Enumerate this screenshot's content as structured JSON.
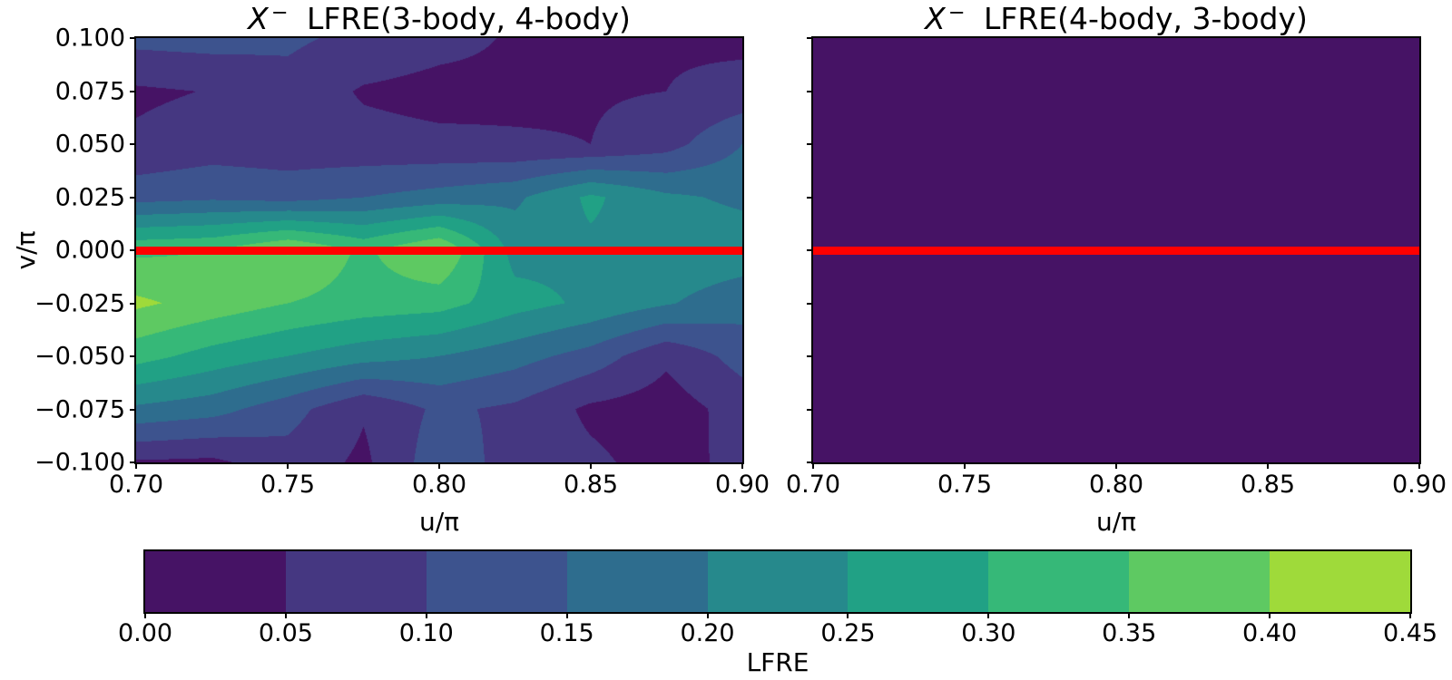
{
  "figure": {
    "background": "#ffffff",
    "titles": [
      {
        "var": "X",
        "sup": "−",
        "rest": " LFRE(3-body, 4-body)"
      },
      {
        "var": "X",
        "sup": "−",
        "rest": " LFRE(4-body, 3-body)"
      }
    ]
  },
  "colorbar": {
    "label": "LFRE",
    "tick_labels": [
      "0.00",
      "0.05",
      "0.10",
      "0.15",
      "0.20",
      "0.25",
      "0.30",
      "0.35",
      "0.40",
      "0.45"
    ],
    "levels": [
      0,
      0.05,
      0.1,
      0.15,
      0.2,
      0.25,
      0.3,
      0.35,
      0.4,
      0.45
    ],
    "colors": [
      "#461365",
      "#453781",
      "#3d538e",
      "#2e6d8e",
      "#26898c",
      "#21a185",
      "#36b878",
      "#5ec962",
      "#9fda3a"
    ]
  },
  "chart_data": [
    {
      "type": "heatmap",
      "title": "X⁻ LFRE(3-body, 4-body)",
      "xlabel": "u/π",
      "ylabel": "v/π",
      "xlim": [
        0.7,
        0.9
      ],
      "ylim": [
        -0.1,
        0.1
      ],
      "x": [
        0.7,
        0.725,
        0.75,
        0.775,
        0.8,
        0.825,
        0.85,
        0.875,
        0.9
      ],
      "y": [
        0.1,
        0.075,
        0.05,
        0.025,
        0.0,
        -0.025,
        -0.05,
        -0.075,
        -0.1
      ],
      "xtick_values": [
        0.7,
        0.75,
        0.8,
        0.85,
        0.9
      ],
      "xtick_labels": [
        "0.70",
        "0.75",
        "0.80",
        "0.85",
        "0.90"
      ],
      "ytick_values": [
        0.1,
        0.075,
        0.05,
        0.025,
        0.0,
        -0.025,
        -0.05,
        -0.075,
        -0.1
      ],
      "ytick_labels": [
        "0.100",
        "0.075",
        "0.050",
        "0.025",
        "0.000",
        "−0.025",
        "−0.050",
        "−0.075",
        "−0.100"
      ],
      "z": [
        [
          0.115,
          0.12,
          0.11,
          0.085,
          0.065,
          0.045,
          0.04,
          0.045,
          0.04
        ],
        [
          0.042,
          0.052,
          0.08,
          0.045,
          0.035,
          0.04,
          0.045,
          0.05,
          0.065
        ],
        [
          0.058,
          0.075,
          0.07,
          0.065,
          0.06,
          0.055,
          0.05,
          0.08,
          0.15
        ],
        [
          0.13,
          0.14,
          0.13,
          0.15,
          0.17,
          0.19,
          0.26,
          0.21,
          0.19
        ],
        [
          0.34,
          0.35,
          0.405,
          0.34,
          0.405,
          0.23,
          0.24,
          0.235,
          0.23
        ],
        [
          0.41,
          0.38,
          0.35,
          0.33,
          0.32,
          0.27,
          0.24,
          0.205,
          0.17
        ],
        [
          0.32,
          0.28,
          0.25,
          0.22,
          0.2,
          0.17,
          0.13,
          0.06,
          0.12
        ],
        [
          0.19,
          0.17,
          0.12,
          0.055,
          0.11,
          0.09,
          0.04,
          0.025,
          0.07
        ],
        [
          0.045,
          0.04,
          0.08,
          0.04,
          0.13,
          0.08,
          0.06,
          0.03,
          0.065
        ]
      ],
      "zero_line": {
        "y": 0.0,
        "color": "#ff0000"
      }
    },
    {
      "type": "heatmap",
      "title": "X⁻ LFRE(4-body, 3-body)",
      "xlabel": "u/π",
      "ylabel": "",
      "xlim": [
        0.7,
        0.9
      ],
      "ylim": [
        -0.1,
        0.1
      ],
      "x": [
        0.7,
        0.725,
        0.75,
        0.775,
        0.8,
        0.825,
        0.85,
        0.875,
        0.9
      ],
      "y": [
        0.1,
        0.075,
        0.05,
        0.025,
        0.0,
        -0.025,
        -0.05,
        -0.075,
        -0.1
      ],
      "xtick_values": [
        0.7,
        0.75,
        0.8,
        0.85,
        0.9
      ],
      "xtick_labels": [
        "0.70",
        "0.75",
        "0.80",
        "0.85",
        "0.90"
      ],
      "ytick_values": [
        0.1,
        0.075,
        0.05,
        0.025,
        0.0,
        -0.025,
        -0.05,
        -0.075,
        -0.1
      ],
      "ytick_labels": [],
      "z": [
        [
          0.02,
          0.02,
          0.02,
          0.02,
          0.02,
          0.02,
          0.02,
          0.02,
          0.02
        ],
        [
          0.02,
          0.02,
          0.02,
          0.02,
          0.02,
          0.02,
          0.02,
          0.02,
          0.02
        ],
        [
          0.02,
          0.02,
          0.02,
          0.02,
          0.02,
          0.02,
          0.02,
          0.02,
          0.02
        ],
        [
          0.02,
          0.02,
          0.02,
          0.02,
          0.02,
          0.02,
          0.02,
          0.02,
          0.02
        ],
        [
          0.02,
          0.02,
          0.02,
          0.02,
          0.02,
          0.02,
          0.02,
          0.02,
          0.02
        ],
        [
          0.02,
          0.02,
          0.02,
          0.02,
          0.02,
          0.02,
          0.02,
          0.02,
          0.02
        ],
        [
          0.02,
          0.02,
          0.02,
          0.02,
          0.02,
          0.02,
          0.02,
          0.02,
          0.02
        ],
        [
          0.02,
          0.02,
          0.02,
          0.02,
          0.02,
          0.02,
          0.02,
          0.02,
          0.02
        ],
        [
          0.02,
          0.02,
          0.02,
          0.02,
          0.02,
          0.02,
          0.02,
          0.02,
          0.02
        ]
      ],
      "zero_line": {
        "y": 0.0,
        "color": "#ff0000"
      }
    }
  ]
}
